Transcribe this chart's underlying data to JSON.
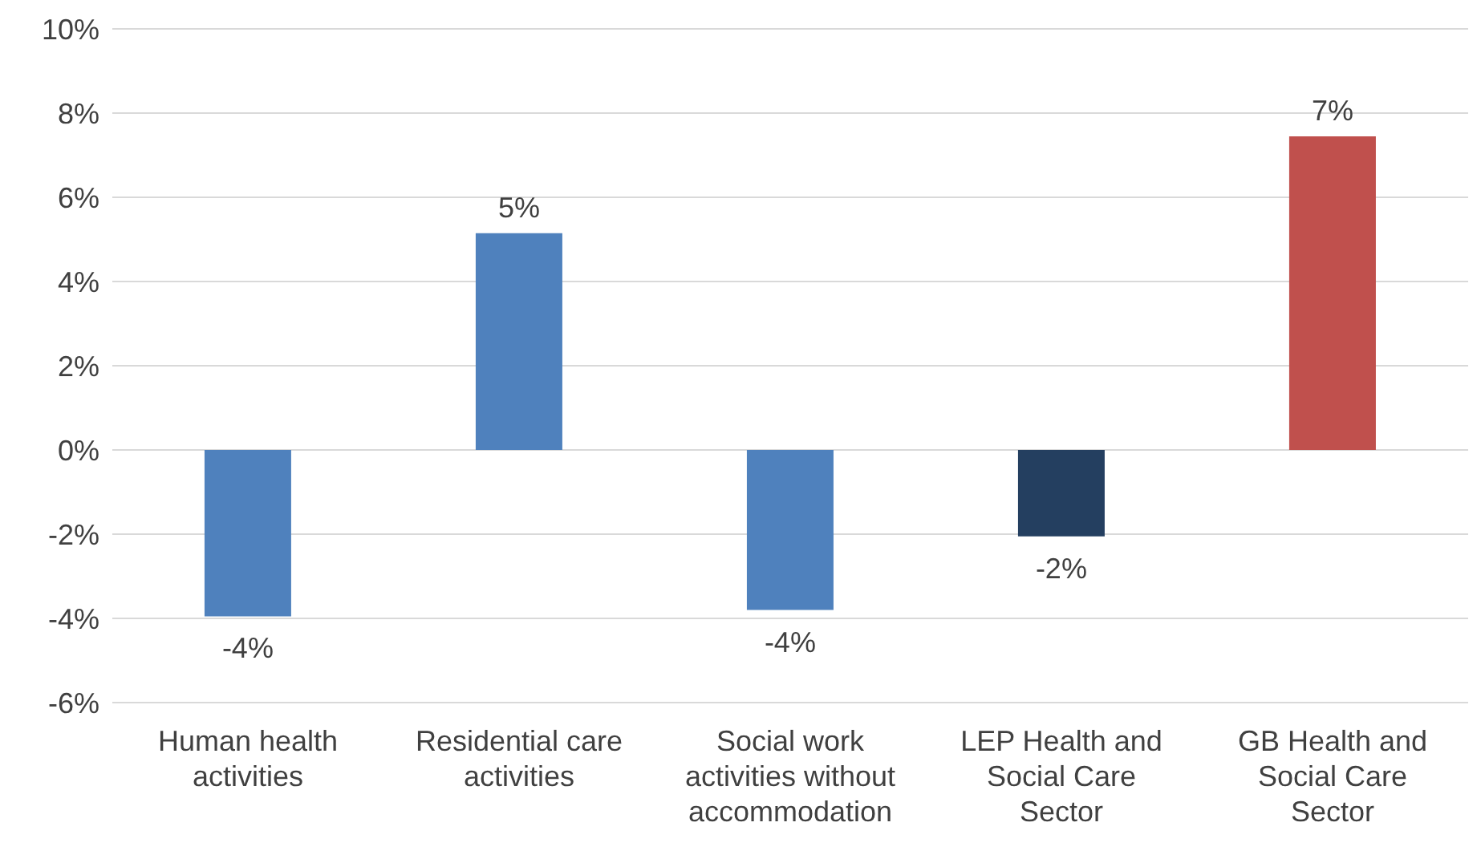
{
  "chart_data": {
    "type": "bar",
    "categories": [
      "Human health activities",
      "Residential care activities",
      "Social work activities without accommodation",
      "LEP Health and Social Care Sector",
      "GB Health and Social Care Sector"
    ],
    "values": [
      -3.95,
      5.15,
      -3.8,
      -2.05,
      7.45
    ],
    "colors": [
      "#4f81bd",
      "#4f81bd",
      "#4f81bd",
      "#243f60",
      "#c0504d"
    ],
    "value_labels": [
      "-4%",
      "5%",
      "-4%",
      "-2%",
      "7%"
    ],
    "ylim": [
      -6,
      10
    ],
    "yticks": [
      {
        "value": -6,
        "label": "-6%"
      },
      {
        "value": -4,
        "label": "-4%"
      },
      {
        "value": -2,
        "label": "-2%"
      },
      {
        "value": 0,
        "label": "0%"
      },
      {
        "value": 2,
        "label": "2%"
      },
      {
        "value": 4,
        "label": "4%"
      },
      {
        "value": 6,
        "label": "6%"
      },
      {
        "value": 8,
        "label": "8%"
      },
      {
        "value": 10,
        "label": "10%"
      }
    ],
    "grid": "y",
    "legend": false
  }
}
